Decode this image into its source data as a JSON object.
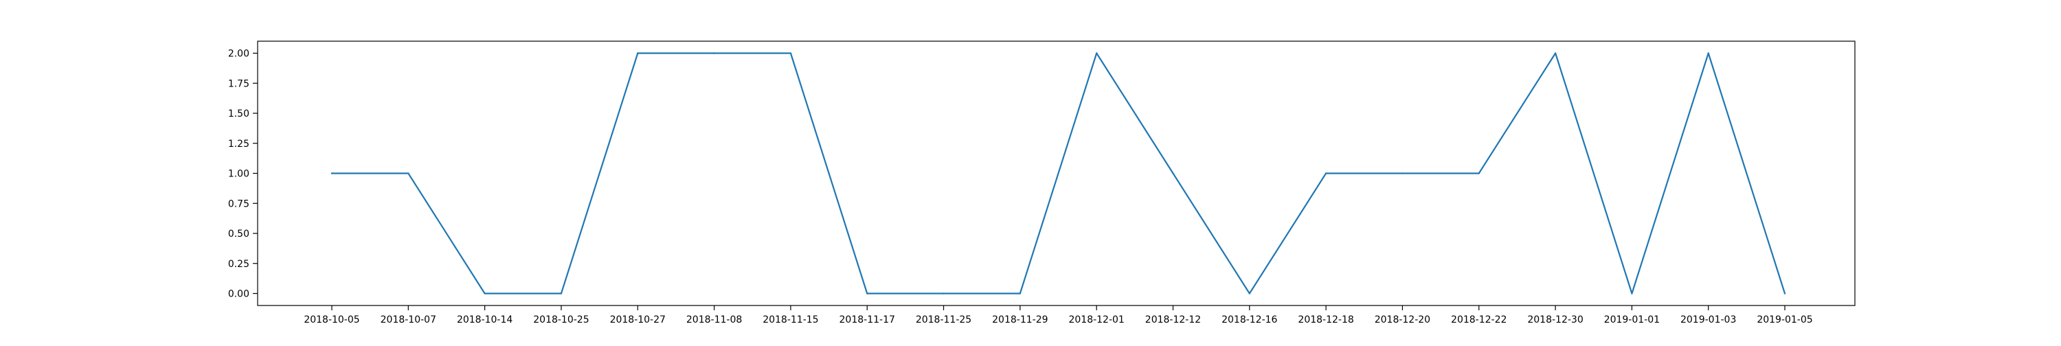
{
  "chart_data": {
    "type": "line",
    "categories": [
      "2018-10-05",
      "2018-10-07",
      "2018-10-14",
      "2018-10-25",
      "2018-10-27",
      "2018-11-08",
      "2018-11-15",
      "2018-11-17",
      "2018-11-25",
      "2018-11-29",
      "2018-12-01",
      "2018-12-12",
      "2018-12-16",
      "2018-12-18",
      "2018-12-20",
      "2018-12-22",
      "2018-12-30",
      "2019-01-01",
      "2019-01-03",
      "2019-01-05"
    ],
    "series": [
      {
        "values": [
          1,
          1,
          0,
          0,
          2,
          2,
          2,
          0,
          0,
          0,
          2,
          1,
          0,
          1,
          1,
          1,
          2,
          0,
          2,
          0
        ],
        "color": "#1f77b4"
      }
    ],
    "yticks": [
      "0.00",
      "0.25",
      "0.50",
      "0.75",
      "1.00",
      "1.25",
      "1.50",
      "1.75",
      "2.00"
    ],
    "ylim": [
      -0.1,
      2.1
    ],
    "grid": false,
    "legend": "none"
  }
}
